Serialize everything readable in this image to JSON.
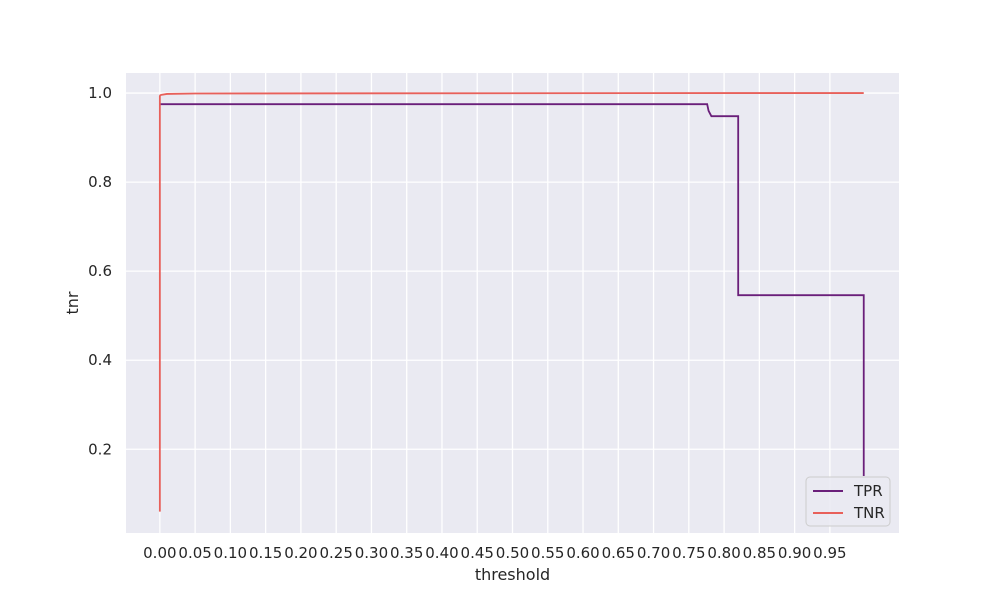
{
  "chart_data": {
    "type": "line",
    "xlabel": "threshold",
    "ylabel": "tnr",
    "xlim": [
      -0.048,
      1.048
    ],
    "ylim": [
      0.012,
      1.045
    ],
    "grid": true,
    "legend_position": "bottom-right",
    "x_ticks": [
      0.0,
      0.05,
      0.1,
      0.15,
      0.2,
      0.25,
      0.3,
      0.35,
      0.4,
      0.45,
      0.5,
      0.55,
      0.6,
      0.65,
      0.7,
      0.75,
      0.8,
      0.85,
      0.9,
      0.95
    ],
    "x_tick_labels": [
      "0.00",
      "0.05",
      "0.10",
      "0.15",
      "0.20",
      "0.25",
      "0.30",
      "0.35",
      "0.40",
      "0.45",
      "0.50",
      "0.55",
      "0.60",
      "0.65",
      "0.70",
      "0.75",
      "0.80",
      "0.85",
      "0.90",
      "0.95"
    ],
    "y_ticks": [
      0.2,
      0.4,
      0.6,
      0.8,
      1.0
    ],
    "y_tick_labels": [
      "0.2",
      "0.4",
      "0.6",
      "0.8",
      "1.0"
    ],
    "colors": {
      "plot_bg": "#eaeaf2",
      "grid": "#ffffff",
      "TPR": "#6a1f7a",
      "TNR": "#e8605a"
    },
    "series": [
      {
        "name": "TPR",
        "x": [
          0.0,
          0.0,
          0.0005,
          0.001,
          0.776,
          0.778,
          0.782,
          0.82,
          0.82,
          0.998,
          0.998
        ],
        "y": [
          0.975,
          0.975,
          0.975,
          0.975,
          0.975,
          0.96,
          0.948,
          0.948,
          0.546,
          0.546,
          0.14
        ]
      },
      {
        "name": "TNR",
        "x": [
          0.0,
          0.0,
          0.0005,
          0.002,
          0.01,
          0.05,
          0.82,
          0.998
        ],
        "y": [
          0.06,
          0.993,
          0.995,
          0.996,
          0.998,
          0.999,
          1.0,
          1.0
        ]
      }
    ]
  }
}
